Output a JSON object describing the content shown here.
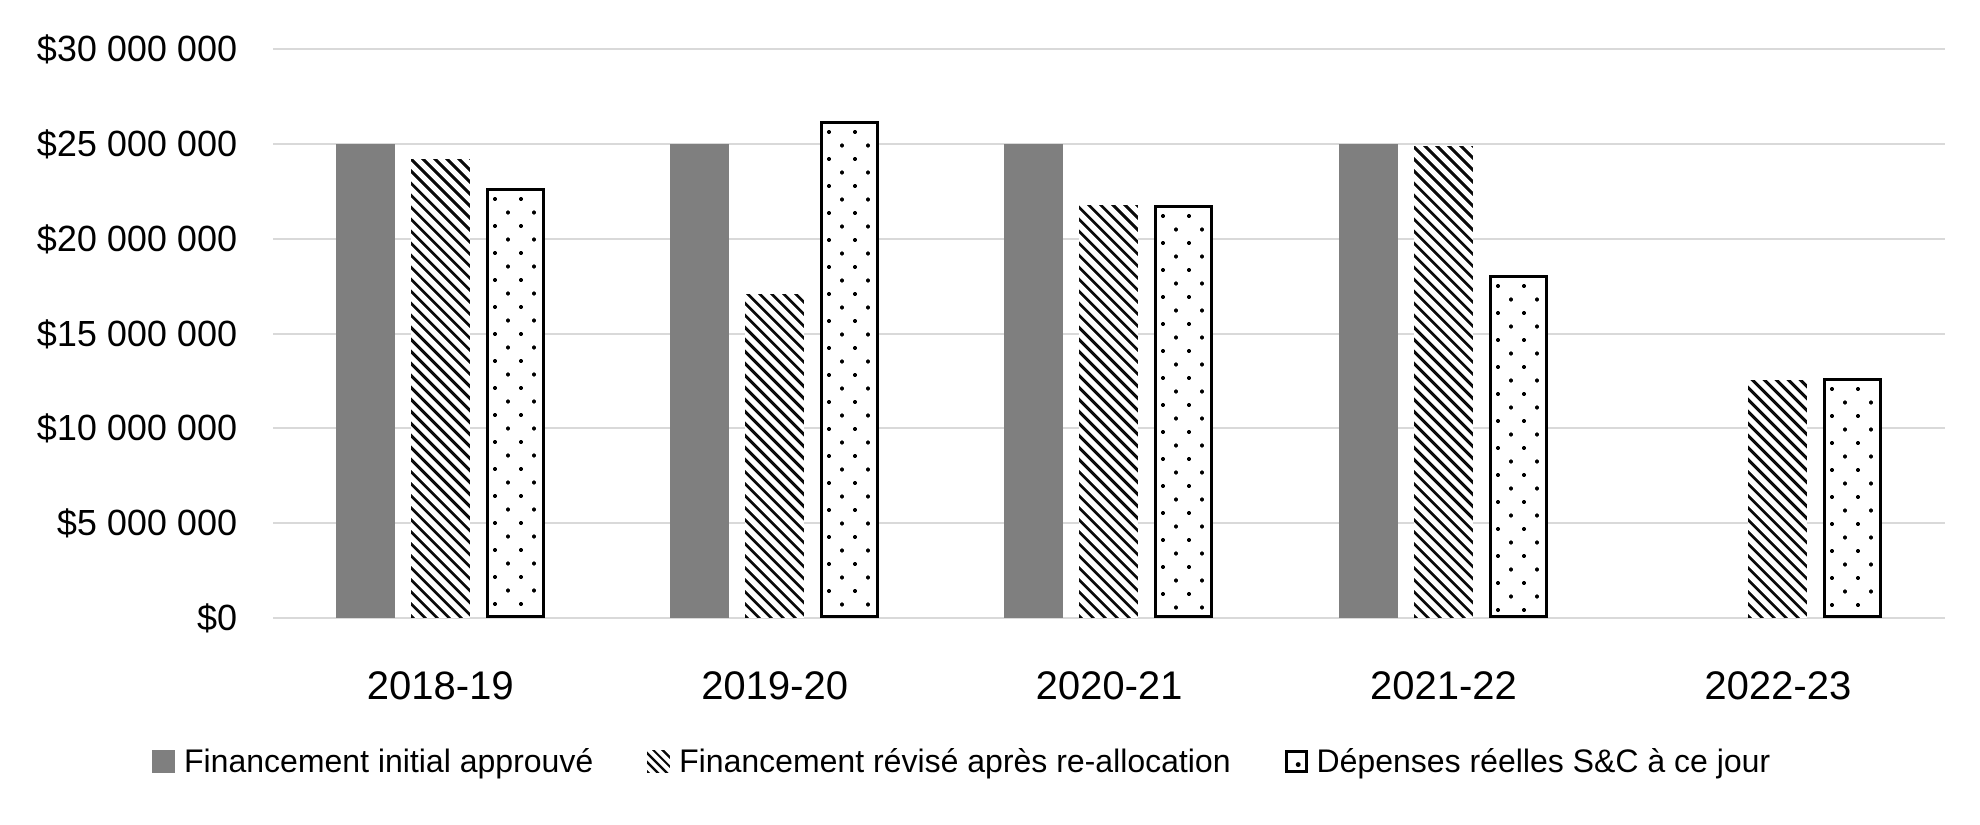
{
  "chart_data": {
    "type": "bar",
    "title": "",
    "xlabel": "",
    "ylabel": "",
    "categories": [
      "2018-19",
      "2019-20",
      "2020-21",
      "2021-22",
      "2022-23"
    ],
    "series": [
      {
        "name": "Financement initial approuvé",
        "pattern": "solid-gray",
        "values": [
          25000000,
          25000000,
          25000000,
          25000000,
          0
        ]
      },
      {
        "name": "Financement révisé après re-allocation",
        "pattern": "diagonal-hatch",
        "values": [
          24200000,
          17100000,
          21800000,
          24900000,
          12550000
        ]
      },
      {
        "name": "Dépenses réelles S&C à ce jour",
        "pattern": "dotted-outline",
        "values": [
          22650000,
          26200000,
          21800000,
          18100000,
          12650000
        ]
      }
    ],
    "y_ticks": [
      {
        "label": "$0",
        "value": 0
      },
      {
        "label": "$5 000 000",
        "value": 5000000
      },
      {
        "label": "$10 000 000",
        "value": 10000000
      },
      {
        "label": "$15 000 000",
        "value": 15000000
      },
      {
        "label": "$20 000 000",
        "value": 20000000
      },
      {
        "label": "$25 000 000",
        "value": 25000000
      },
      {
        "label": "$30 000 000",
        "value": 30000000
      }
    ],
    "ylim": [
      0,
      30000000
    ],
    "grid": true,
    "legend_position": "bottom",
    "colors": {
      "bar_gray": "#7f7f7f",
      "pattern_black": "#000000",
      "gridline": "#d9d9d9",
      "text": "#000000",
      "background": "#ffffff"
    }
  }
}
